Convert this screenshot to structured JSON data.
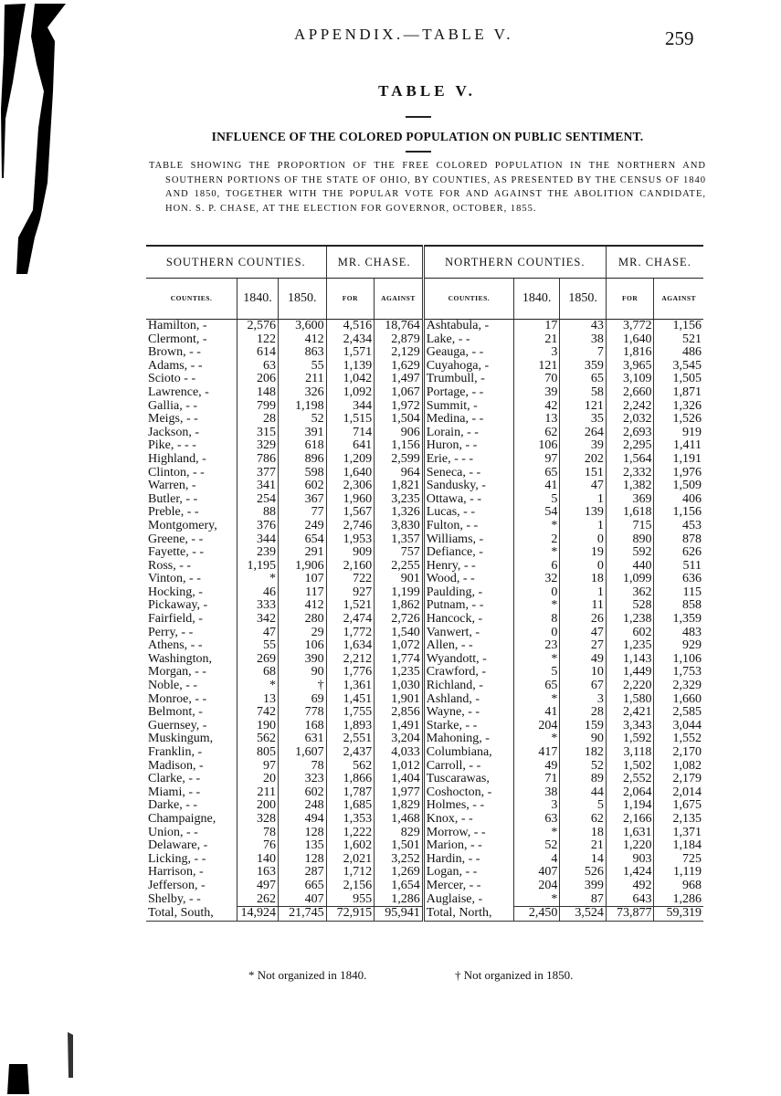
{
  "header": {
    "running_head": "APPENDIX.—TABLE V.",
    "page_number": "259"
  },
  "title": "TABLE V.",
  "subtitle": "INFLUENCE OF THE COLORED POPULATION ON PUBLIC SENTIMENT.",
  "caption": "TABLE SHOWING THE PROPORTION OF THE FREE COLORED POPULATION IN THE NORTHERN AND SOUTHERN PORTIONS OF THE STATE OF OHIO, BY COUNTIES, AS PRESENTED BY THE CENSUS OF 1840 AND 1850, TOGETHER WITH THE POPULAR VOTE FOR AND AGAINST THE ABOLITION CANDIDATE, HON. S. P. CHASE, AT THE ELECTION FOR GOVERNOR, OCTOBER, 1855.",
  "table": {
    "group_headers": [
      "SOUTHERN COUNTIES.",
      "MR. CHASE.",
      "NORTHERN COUNTIES.",
      "MR. CHASE."
    ],
    "column_headers": [
      "COUNTIES.",
      "1840.",
      "1850.",
      "FOR",
      "AGAINST",
      "COUNTIES.",
      "1840.",
      "1850.",
      "FOR",
      "AGAINST"
    ],
    "south": [
      [
        "Hamilton,  -",
        "2,576",
        "3,600",
        "4,516",
        "18,764"
      ],
      [
        "Clermont,  -",
        "122",
        "412",
        "2,434",
        "2,879"
      ],
      [
        "Brown,  -  -",
        "614",
        "863",
        "1,571",
        "2,129"
      ],
      [
        "Adams,  -  -",
        "63",
        "55",
        "1,139",
        "1,629"
      ],
      [
        "Scioto  -  -",
        "206",
        "211",
        "1,042",
        "1,497"
      ],
      [
        "Lawrence,  -",
        "148",
        "326",
        "1,092",
        "1,067"
      ],
      [
        "Gallia,  -  -",
        "799",
        "1,198",
        "344",
        "1,972"
      ],
      [
        "Meigs,  -  -",
        "28",
        "52",
        "1,515",
        "1,504"
      ],
      [
        "Jackson,  -",
        "315",
        "391",
        "714",
        "906"
      ],
      [
        "Pike, -  -  -",
        "329",
        "618",
        "641",
        "1,156"
      ],
      [
        "Highland,  -",
        "786",
        "896",
        "1,209",
        "2,599"
      ],
      [
        "Clinton,  -  -",
        "377",
        "598",
        "1,640",
        "964"
      ],
      [
        "Warren,  -",
        "341",
        "602",
        "2,306",
        "1,821"
      ],
      [
        "Butler,  -  -",
        "254",
        "367",
        "1,960",
        "3,235"
      ],
      [
        "Preble,  -  -",
        "88",
        "77",
        "1,567",
        "1,326"
      ],
      [
        "Montgomery,",
        "376",
        "249",
        "2,746",
        "3,830"
      ],
      [
        "Greene,  -  -",
        "344",
        "654",
        "1,953",
        "1,357"
      ],
      [
        "Fayette,  -  -",
        "239",
        "291",
        "909",
        "757"
      ],
      [
        "Ross,  -  -",
        "1,195",
        "1,906",
        "2,160",
        "2,255"
      ],
      [
        "Vinton,  -  -",
        "*",
        "107",
        "722",
        "901"
      ],
      [
        "Hocking,  -",
        "46",
        "117",
        "927",
        "1,199"
      ],
      [
        "Pickaway,  -",
        "333",
        "412",
        "1,521",
        "1,862"
      ],
      [
        "Fairfield,  -",
        "342",
        "280",
        "2,474",
        "2,726"
      ],
      [
        "Perry,  -  -",
        "47",
        "29",
        "1,772",
        "1,540"
      ],
      [
        "Athens,  -  -",
        "55",
        "106",
        "1,634",
        "1,072"
      ],
      [
        "Washington,",
        "269",
        "390",
        "2,212",
        "1,774"
      ],
      [
        "Morgan,  -  -",
        "68",
        "90",
        "1,776",
        "1,235"
      ],
      [
        "Noble,  -  -",
        "*",
        "†",
        "1,361",
        "1,030"
      ],
      [
        "Monroe,  -  -",
        "13",
        "69",
        "1,451",
        "1,901"
      ],
      [
        "Belmont,  -",
        "742",
        "778",
        "1,755",
        "2,856"
      ],
      [
        "Guernsey,  -",
        "190",
        "168",
        "1,893",
        "1,491"
      ],
      [
        "Muskingum,",
        "562",
        "631",
        "2,551",
        "3,204"
      ],
      [
        "Franklin,  -",
        "805",
        "1,607",
        "2,437",
        "4,033"
      ],
      [
        "Madison,  -",
        "97",
        "78",
        "562",
        "1,012"
      ],
      [
        "Clarke,  -  -",
        "20",
        "323",
        "1,866",
        "1,404"
      ],
      [
        "Miami,  -  -",
        "211",
        "602",
        "1,787",
        "1,977"
      ],
      [
        "Darke,  -  -",
        "200",
        "248",
        "1,685",
        "1,829"
      ],
      [
        "Champaigne,",
        "328",
        "494",
        "1,353",
        "1,468"
      ],
      [
        "Union,  -  -",
        "78",
        "128",
        "1,222",
        "829"
      ],
      [
        "Delaware,  -",
        "76",
        "135",
        "1,602",
        "1,501"
      ],
      [
        "Licking, -  -",
        "140",
        "128",
        "2,021",
        "3,252"
      ],
      [
        "Harrison,  -",
        "163",
        "287",
        "1,712",
        "1,269"
      ],
      [
        "Jefferson,  -",
        "497",
        "665",
        "2,156",
        "1,654"
      ],
      [
        "Shelby,  -  -",
        "262",
        "407",
        "955",
        "1,286"
      ]
    ],
    "north": [
      [
        "Ashtabula,  -",
        "17",
        "43",
        "3,772",
        "1,156"
      ],
      [
        "Lake,  -  -",
        "21",
        "38",
        "1,640",
        "521"
      ],
      [
        "Geauga, -  -",
        "3",
        "7",
        "1,816",
        "486"
      ],
      [
        "Cuyahoga,  -",
        "121",
        "359",
        "3,965",
        "3,545"
      ],
      [
        "Trumbull,  -",
        "70",
        "65",
        "3,109",
        "1,505"
      ],
      [
        "Portage, -  -",
        "39",
        "58",
        "2,660",
        "1,871"
      ],
      [
        "Summit,  -",
        "42",
        "121",
        "2,242",
        "1,326"
      ],
      [
        "Medina, -  -",
        "13",
        "35",
        "2,032",
        "1,526"
      ],
      [
        "Lorain,  -  -",
        "62",
        "264",
        "2,693",
        "919"
      ],
      [
        "Huron,  -  -",
        "106",
        "39",
        "2,295",
        "1,411"
      ],
      [
        "Erie, -  -  -",
        "97",
        "202",
        "1,564",
        "1,191"
      ],
      [
        "Seneca,  -  -",
        "65",
        "151",
        "2,332",
        "1,976"
      ],
      [
        "Sandusky,  -",
        "41",
        "47",
        "1,382",
        "1,509"
      ],
      [
        "Ottawa,  -  -",
        "5",
        "1",
        "369",
        "406"
      ],
      [
        "Lucas,  -  -",
        "54",
        "139",
        "1,618",
        "1,156"
      ],
      [
        "Fulton, -  -",
        "*",
        "1",
        "715",
        "453"
      ],
      [
        "Williams,  -",
        "2",
        "0",
        "890",
        "878"
      ],
      [
        "Defiance,  -",
        "*",
        "19",
        "592",
        "626"
      ],
      [
        "Henry,  -  -",
        "6",
        "0",
        "440",
        "511"
      ],
      [
        "Wood,  -  -",
        "32",
        "18",
        "1,099",
        "636"
      ],
      [
        "Paulding,  -",
        "0",
        "1",
        "362",
        "115"
      ],
      [
        "Putnam, -  -",
        "*",
        "11",
        "528",
        "858"
      ],
      [
        "Hancock,  -",
        "8",
        "26",
        "1,238",
        "1,359"
      ],
      [
        "Vanwert,  -",
        "0",
        "47",
        "602",
        "483"
      ],
      [
        "Allen,  -  -",
        "23",
        "27",
        "1,235",
        "929"
      ],
      [
        "Wyandott,  -",
        "*",
        "49",
        "1,143",
        "1,106"
      ],
      [
        "Crawford,  -",
        "5",
        "10",
        "1,449",
        "1,753"
      ],
      [
        "Richland,  -",
        "65",
        "67",
        "2,220",
        "2,329"
      ],
      [
        "Ashland,  -",
        "*",
        "3",
        "1,580",
        "1,660"
      ],
      [
        "Wayne,  -  -",
        "41",
        "28",
        "2,421",
        "2,585"
      ],
      [
        "Starke,  -  -",
        "204",
        "159",
        "3,343",
        "3,044"
      ],
      [
        "Mahoning,  -",
        "*",
        "90",
        "1,592",
        "1,552"
      ],
      [
        "Columbiana,",
        "417",
        "182",
        "3,118",
        "2,170"
      ],
      [
        "Carroll,  -  -",
        "49",
        "52",
        "1,502",
        "1,082"
      ],
      [
        "Tuscarawas,",
        "71",
        "89",
        "2,552",
        "2,179"
      ],
      [
        "Coshocton,  -",
        "38",
        "44",
        "2,064",
        "2,014"
      ],
      [
        "Holmes,  -  -",
        "3",
        "5",
        "1,194",
        "1,675"
      ],
      [
        "Knox,  -  -",
        "63",
        "62",
        "2,166",
        "2,135"
      ],
      [
        "Morrow, -  -",
        "*",
        "18",
        "1,631",
        "1,371"
      ],
      [
        "Marion,  -  -",
        "52",
        "21",
        "1,220",
        "1,184"
      ],
      [
        "Hardin,  -  -",
        "4",
        "14",
        "903",
        "725"
      ],
      [
        "Logan,  -  -",
        "407",
        "526",
        "1,424",
        "1,119"
      ],
      [
        "Mercer,  -  -",
        "204",
        "399",
        "492",
        "968"
      ],
      [
        "Auglaise,  -",
        "*",
        "87",
        "643",
        "1,286"
      ]
    ],
    "total_south": [
      "Total, South,",
      "14,924",
      "21,745",
      "72,915",
      "95,941"
    ],
    "total_north": [
      "Total, North,",
      "2,450",
      "3,524",
      "73,877",
      "59,319"
    ]
  },
  "footnotes": [
    "* Not organized in 1840.",
    "† Not organized in 1850."
  ]
}
